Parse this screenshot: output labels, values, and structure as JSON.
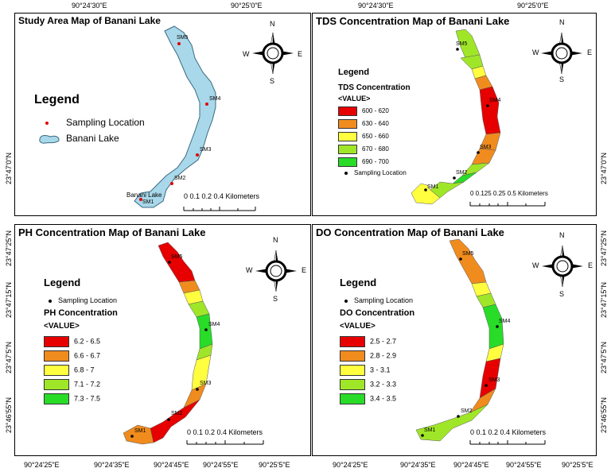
{
  "top_coords": [
    "90°24'30\"E",
    "90°25'0\"E",
    "90°24'30\"E",
    "90°25'0\"E"
  ],
  "bottom_coords": [
    "90°24'25\"E",
    "90°24'35\"E",
    "90°24'45\"E",
    "90°24'55\"E",
    "90°25'5\"E",
    "90°24'25\"E",
    "90°24'35\"E",
    "90°24'45\"E",
    "90°24'55\"E",
    "90°25'5\"E"
  ],
  "left_coords": [
    "23°47'0\"N",
    "23°47'25\"N",
    "23°47'15\"N",
    "23°47'5\"N",
    "23°46'55\"N"
  ],
  "right_coords": [
    "23°47'0\"N",
    "23°47'25\"N",
    "23°47'15\"N",
    "23°47'5\"N",
    "23°46'55\"N"
  ],
  "compass": {
    "n": "N",
    "s": "S",
    "e": "E",
    "w": "W"
  },
  "study": {
    "title": "Study Area Map of Banani Lake",
    "legend_title": "Legend",
    "sampling_label": "Sampling Location",
    "lake_label": "Banani Lake",
    "lake_name_on_map": "Banani Lake",
    "scale": "0   0.1  0.2          0.4 Kilometers",
    "sites": [
      "SM5",
      "SM4",
      "SM3",
      "SM2",
      "SM1"
    ],
    "lake_color": "#a8d8ea"
  },
  "tds": {
    "title": "TDS Concentration Map of Banani Lake",
    "legend_title": "Legend",
    "param_title": "TDS Concentration",
    "value_label": "<VALUE>",
    "classes": [
      {
        "label": "600 - 620",
        "color": "#e60000"
      },
      {
        "label": "630 - 640",
        "color": "#f08c1e"
      },
      {
        "label": "650 - 660",
        "color": "#ffff40"
      },
      {
        "label": "670 - 680",
        "color": "#a0e628"
      },
      {
        "label": "690 - 700",
        "color": "#28dc28"
      }
    ],
    "sampling_label": "Sampling Location",
    "scale": "0   0.125  0.25          0.5 Kilometers",
    "sites": [
      "SM5",
      "SM4",
      "SM3",
      "SM2",
      "SM1"
    ]
  },
  "ph": {
    "title": "PH Concentration Map of Banani Lake",
    "legend_title": "Legend",
    "sampling_label": "Sampling Location",
    "param_title": "PH Concentration",
    "value_label": "<VALUE>",
    "classes": [
      {
        "label": "6.2 - 6.5",
        "color": "#e60000"
      },
      {
        "label": "6.6 - 6.7",
        "color": "#f08c1e"
      },
      {
        "label": "6.8 - 7",
        "color": "#ffff40"
      },
      {
        "label": "7.1 - 7.2",
        "color": "#a0e628"
      },
      {
        "label": "7.3 - 7.5",
        "color": "#28dc28"
      }
    ],
    "scale": "0   0.1  0.2          0.4 Kilometers",
    "sites": [
      "SM5",
      "SM4",
      "SM3",
      "SM2",
      "SM1"
    ]
  },
  "do": {
    "title": "DO Concentration Map of Banani Lake",
    "legend_title": "Legend",
    "sampling_label": "Sampling Location",
    "param_title": "DO Concentration",
    "value_label": "<VALUE>",
    "classes": [
      {
        "label": "2.5 - 2.7",
        "color": "#e60000"
      },
      {
        "label": "2.8 - 2.9",
        "color": "#f08c1e"
      },
      {
        "label": "3 - 3.1",
        "color": "#ffff40"
      },
      {
        "label": "3.2 - 3.3",
        "color": "#a0e628"
      },
      {
        "label": "3.4 - 3.5",
        "color": "#28dc28"
      }
    ],
    "scale": "0   0.1  0.2          0.4 Kilometers",
    "sites": [
      "SM5",
      "SM4",
      "SM3",
      "SM2",
      "SM1"
    ]
  }
}
